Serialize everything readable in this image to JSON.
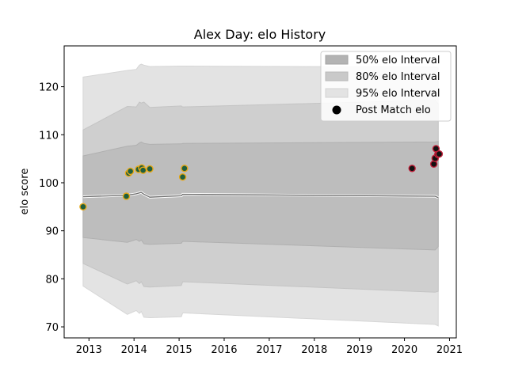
{
  "chart_data": {
    "type": "line",
    "title": "Alex Day: elo History",
    "xlabel": "",
    "ylabel": "elo score",
    "xlim": [
      2012.45,
      2021.15
    ],
    "ylim": [
      67.7,
      128.5
    ],
    "x_ticks": [
      2013,
      2014,
      2015,
      2016,
      2017,
      2018,
      2019,
      2020,
      2021
    ],
    "y_ticks": [
      70,
      80,
      90,
      100,
      110,
      120
    ],
    "grid": false,
    "legend_position": "top-right",
    "legend": [
      {
        "label": "50% elo Interval",
        "kind": "band",
        "color": "#b3b3b3"
      },
      {
        "label": "80% elo Interval",
        "kind": "band",
        "color": "#c9c9c9"
      },
      {
        "label": "95% elo Interval",
        "kind": "band",
        "color": "#e3e3e3"
      },
      {
        "label": "Post Match elo",
        "kind": "marker",
        "color": "#000000"
      }
    ],
    "x": [
      2012.87,
      2013.85,
      2014.05,
      2014.12,
      2014.16,
      2014.22,
      2014.35,
      2015.05,
      2015.08,
      2020.68,
      2020.75
    ],
    "mean": [
      97.1,
      97.4,
      97.7,
      97.9,
      98.0,
      97.6,
      97.0,
      97.3,
      97.6,
      97.2,
      96.9
    ],
    "band_95": {
      "lower": [
        78.5,
        72.6,
        73.4,
        72.8,
        73.2,
        72.0,
        71.9,
        72.1,
        72.9,
        70.5,
        70.2
      ],
      "upper": [
        122.0,
        123.4,
        123.6,
        124.5,
        124.7,
        124.5,
        124.2,
        124.3,
        124.3,
        124.1,
        124.0
      ]
    },
    "band_80": {
      "lower": [
        83.2,
        78.9,
        79.6,
        79.0,
        79.4,
        78.4,
        78.3,
        78.6,
        79.4,
        77.2,
        77.4
      ]
    },
    "band_50": {
      "lower": [
        88.6,
        87.6,
        88.2,
        87.8,
        88.1,
        87.3,
        87.2,
        87.4,
        87.8,
        86.0,
        86.7
      ],
      "upper": [
        105.6,
        107.6,
        107.8,
        108.3,
        108.5,
        108.2,
        108.0,
        108.1,
        108.2,
        108.5,
        108.6
      ]
    },
    "points": [
      {
        "x": 2012.87,
        "y": 95.0,
        "edge": "#e6a817",
        "fill": "#1f5f3f"
      },
      {
        "x": 2013.83,
        "y": 97.2,
        "edge": "#e6a817",
        "fill": "#1f5f3f"
      },
      {
        "x": 2013.88,
        "y": 102.0,
        "edge": "#e6a817",
        "fill": "#1f5f3f"
      },
      {
        "x": 2013.92,
        "y": 102.4,
        "edge": "#e6a817",
        "fill": "#1f5f3f"
      },
      {
        "x": 2014.1,
        "y": 102.8,
        "edge": "#e6a817",
        "fill": "#1f5f3f"
      },
      {
        "x": 2014.17,
        "y": 103.1,
        "edge": "#e6a817",
        "fill": "#1f5f3f"
      },
      {
        "x": 2014.2,
        "y": 102.6,
        "edge": "#e6a817",
        "fill": "#1f5f3f"
      },
      {
        "x": 2014.35,
        "y": 102.9,
        "edge": "#e6a817",
        "fill": "#1f5f3f"
      },
      {
        "x": 2015.08,
        "y": 101.2,
        "edge": "#e6a817",
        "fill": "#1f5f3f"
      },
      {
        "x": 2015.12,
        "y": 103.0,
        "edge": "#e6a817",
        "fill": "#1f5f3f"
      },
      {
        "x": 2020.17,
        "y": 103.0,
        "edge": "#c0203a",
        "fill": "#111111"
      },
      {
        "x": 2020.65,
        "y": 103.9,
        "edge": "#c0203a",
        "fill": "#111111"
      },
      {
        "x": 2020.68,
        "y": 105.1,
        "edge": "#c0203a",
        "fill": "#111111"
      },
      {
        "x": 2020.7,
        "y": 107.1,
        "edge": "#c0203a",
        "fill": "#111111"
      },
      {
        "x": 2020.74,
        "y": 105.9,
        "edge": "#c0203a",
        "fill": "#111111"
      },
      {
        "x": 2020.77,
        "y": 106.0,
        "edge": "#c0203a",
        "fill": "#111111"
      }
    ]
  }
}
